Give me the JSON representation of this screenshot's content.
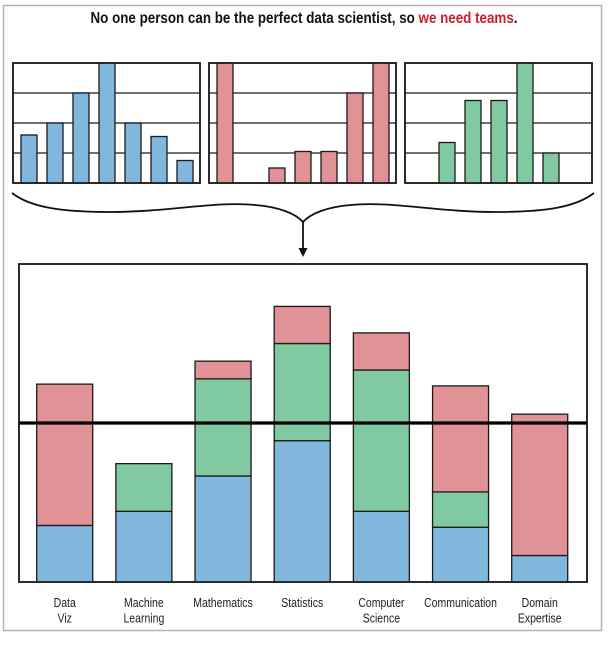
{
  "title": {
    "prefix": "No one person can be the perfect data scientist, so ",
    "highlight": "we need teams",
    "suffix": "."
  },
  "colors": {
    "blue": "#82b7dd",
    "red": "#e09296",
    "green": "#80c9a1",
    "highlight_text": "#c8202e",
    "outline": "#1a1a1a"
  },
  "chart_data": [
    {
      "type": "bar",
      "name": "individual-profile-blue",
      "color": "blue",
      "values": [
        1.6,
        2.0,
        3.0,
        4.0,
        2.0,
        1.55,
        0.75
      ],
      "ylim": [
        0,
        4
      ],
      "gridlines": [
        1,
        2,
        3
      ],
      "grid": true
    },
    {
      "type": "bar",
      "name": "individual-profile-red",
      "color": "red",
      "values": [
        4.0,
        0,
        0.5,
        1.05,
        1.05,
        3.0,
        4.0
      ],
      "ylim": [
        0,
        4
      ],
      "gridlines": [
        1,
        2,
        3
      ],
      "grid": true
    },
    {
      "type": "bar",
      "name": "individual-profile-green",
      "color": "green",
      "values": [
        0,
        1.35,
        2.75,
        2.75,
        4.0,
        1.0,
        0
      ],
      "ylim": [
        0,
        4
      ],
      "gridlines": [
        1,
        2,
        3
      ],
      "grid": true
    },
    {
      "type": "bar",
      "stacked": true,
      "name": "team-combined",
      "title": "",
      "xlabel": "",
      "ylabel": "",
      "categories": [
        "Data Viz",
        "Machine Learning",
        "Mathematics",
        "Statistics",
        "Computer Science",
        "Communication",
        "Domain Expertise"
      ],
      "category_label_lines": [
        [
          "Data",
          "Viz"
        ],
        [
          "Machine",
          "Learning"
        ],
        [
          "Mathematics"
        ],
        [
          "Statistics"
        ],
        [
          "Computer",
          "Science"
        ],
        [
          "Communication"
        ],
        [
          "Domain",
          "Expertise"
        ]
      ],
      "stack_order": [
        "blue",
        "green",
        "red"
      ],
      "series": [
        {
          "name": "blue",
          "color": "blue",
          "values": [
            1.6,
            2.0,
            3.0,
            4.0,
            2.0,
            1.55,
            0.75
          ]
        },
        {
          "name": "green",
          "color": "green",
          "values": [
            0,
            1.35,
            2.75,
            2.75,
            4.0,
            1.0,
            0
          ]
        },
        {
          "name": "red",
          "color": "red",
          "values": [
            4.0,
            0,
            0.5,
            1.05,
            1.05,
            3.0,
            4.0
          ]
        }
      ],
      "reference_line": 4.5,
      "ylim": [
        0,
        9
      ],
      "grid": false,
      "legend": "none"
    }
  ]
}
